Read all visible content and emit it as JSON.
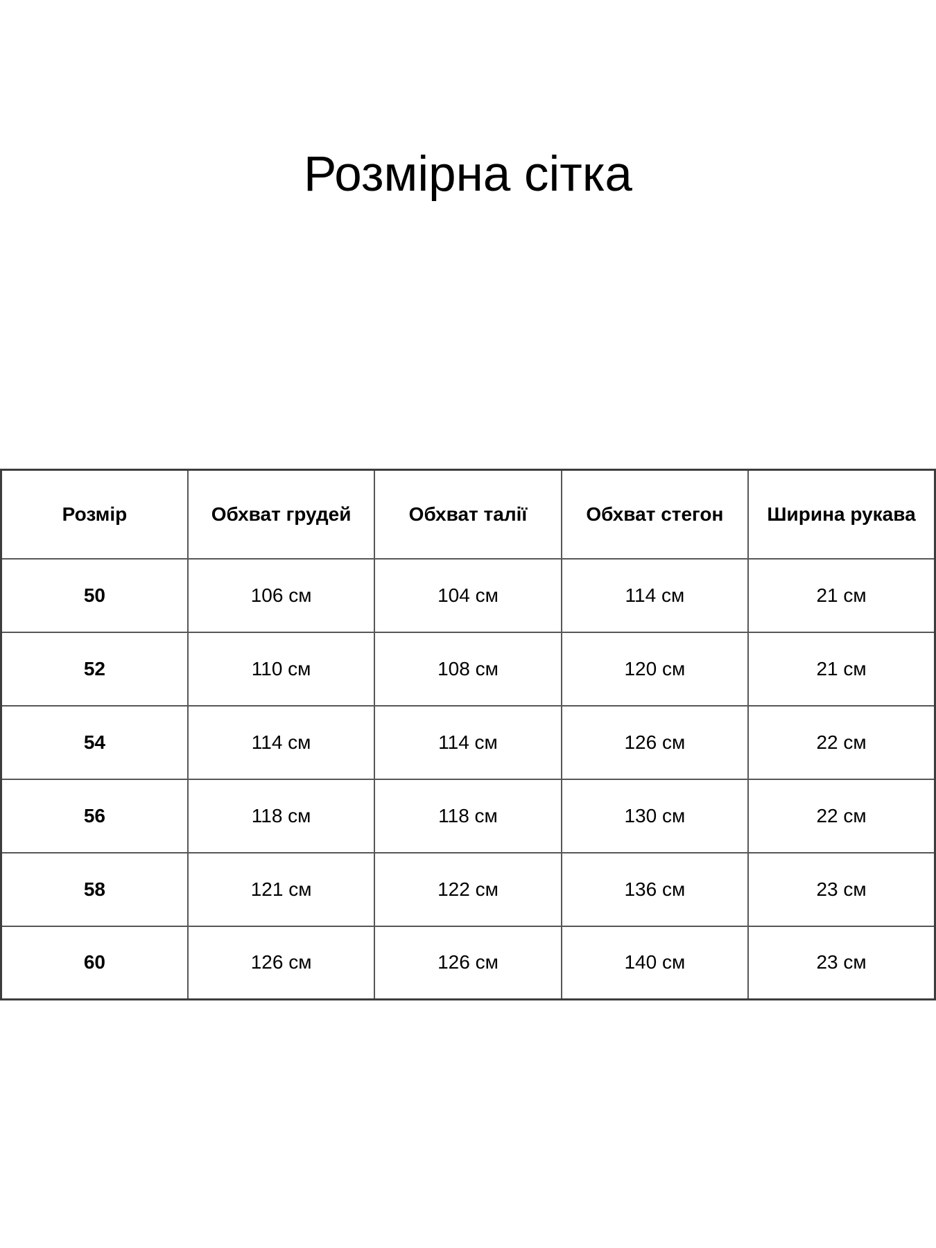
{
  "page": {
    "title": "Розмірна сітка"
  },
  "colors": {
    "background": "#ffffff",
    "text": "#000000",
    "border_outer": "#3d3d3d",
    "border_inner": "#565656"
  },
  "table": {
    "columns": [
      "Розмір",
      "Обхват грудей",
      "Обхват талії",
      "Обхват стегон",
      "Ширина рукава"
    ],
    "rows": [
      {
        "cells": [
          "50",
          "106 см",
          "104 см",
          "114 см",
          "21 см"
        ]
      },
      {
        "cells": [
          "52",
          "110 см",
          "108 см",
          "120 см",
          "21 см"
        ]
      },
      {
        "cells": [
          "54",
          "114 см",
          "114 см",
          "126 см",
          "22 см"
        ]
      },
      {
        "cells": [
          "56",
          "118 см",
          "118 см",
          "130 см",
          "22 см"
        ]
      },
      {
        "cells": [
          "58",
          "121 см",
          "122 см",
          "136 см",
          "23 см"
        ]
      },
      {
        "cells": [
          "60",
          "126 см",
          "126 см",
          "140 см",
          "23 см"
        ]
      }
    ]
  }
}
